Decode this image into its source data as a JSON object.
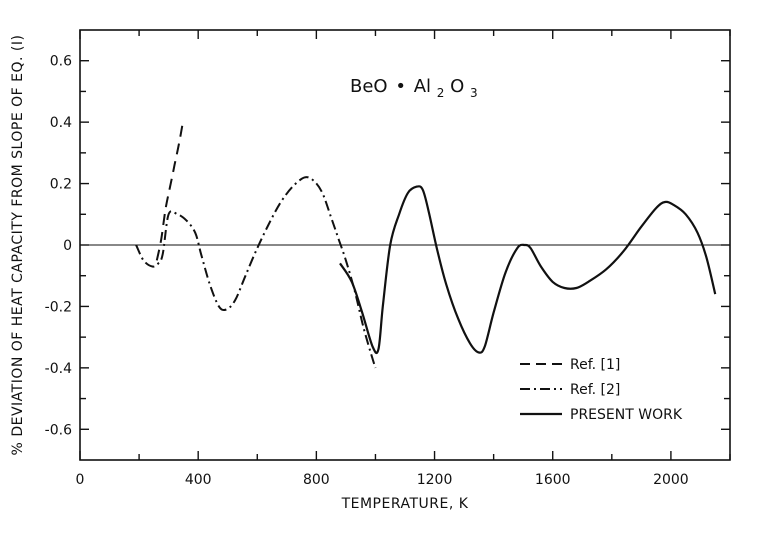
{
  "chart_data": {
    "type": "line",
    "title": "BeO•Al2O3",
    "title_parts": {
      "lead": "BeO",
      "dot": "•",
      "al": "Al",
      "sub1": "2",
      "o": "O",
      "sub2": "3"
    },
    "xlabel": "TEMPERATURE, K",
    "ylabel": "% DEVIATION OF HEAT CAPACITY FROM SLOPE OF EQ. (I)",
    "xlim": [
      0,
      2200
    ],
    "ylim": [
      -0.7,
      0.7
    ],
    "xticks": [
      0,
      400,
      800,
      1200,
      1600,
      2000
    ],
    "xtick_labels": [
      "0",
      "400",
      "800",
      "1200",
      "1600",
      "2000"
    ],
    "yticks": [
      0.6,
      0.4,
      0.2,
      0,
      -0.2,
      -0.4,
      -0.6
    ],
    "ytick_labels": [
      "0.6",
      "0.4",
      "0.2",
      "0",
      "-0.2",
      "-0.4",
      "-0.6"
    ],
    "zero_line": true,
    "grid": false,
    "legend_position": "bottom-right",
    "series": [
      {
        "name": "Ref. [1]",
        "style": "dashed",
        "points": [
          [
            260,
            -0.05
          ],
          [
            275,
            0.02
          ],
          [
            290,
            0.12
          ],
          [
            305,
            0.19
          ],
          [
            320,
            0.26
          ],
          [
            335,
            0.33
          ],
          [
            350,
            0.41
          ]
        ]
      },
      {
        "name": "Ref. [2]",
        "style": "dashdot",
        "points": [
          [
            190,
            0.0
          ],
          [
            215,
            -0.05
          ],
          [
            245,
            -0.07
          ],
          [
            265,
            -0.06
          ],
          [
            280,
            -0.03
          ],
          [
            300,
            0.1
          ],
          [
            330,
            0.1
          ],
          [
            360,
            0.08
          ],
          [
            390,
            0.04
          ],
          [
            410,
            -0.03
          ],
          [
            440,
            -0.13
          ],
          [
            470,
            -0.2
          ],
          [
            495,
            -0.21
          ],
          [
            525,
            -0.18
          ],
          [
            560,
            -0.1
          ],
          [
            600,
            -0.01
          ],
          [
            640,
            0.07
          ],
          [
            680,
            0.14
          ],
          [
            720,
            0.19
          ],
          [
            760,
            0.22
          ],
          [
            790,
            0.21
          ],
          [
            820,
            0.17
          ],
          [
            850,
            0.09
          ],
          [
            875,
            0.02
          ],
          [
            900,
            -0.05
          ],
          [
            930,
            -0.15
          ],
          [
            960,
            -0.27
          ],
          [
            990,
            -0.37
          ],
          [
            1000,
            -0.4
          ]
        ]
      },
      {
        "name": "PRESENT WORK",
        "style": "solid",
        "points": [
          [
            880,
            -0.06
          ],
          [
            920,
            -0.12
          ],
          [
            955,
            -0.22
          ],
          [
            990,
            -0.33
          ],
          [
            1010,
            -0.34
          ],
          [
            1025,
            -0.2
          ],
          [
            1050,
            0.0
          ],
          [
            1080,
            0.1
          ],
          [
            1110,
            0.17
          ],
          [
            1140,
            0.19
          ],
          [
            1160,
            0.18
          ],
          [
            1180,
            0.11
          ],
          [
            1210,
            -0.02
          ],
          [
            1240,
            -0.13
          ],
          [
            1280,
            -0.24
          ],
          [
            1320,
            -0.32
          ],
          [
            1350,
            -0.35
          ],
          [
            1370,
            -0.33
          ],
          [
            1400,
            -0.22
          ],
          [
            1440,
            -0.09
          ],
          [
            1480,
            -0.01
          ],
          [
            1505,
            0.0
          ],
          [
            1525,
            -0.01
          ],
          [
            1560,
            -0.07
          ],
          [
            1600,
            -0.12
          ],
          [
            1640,
            -0.14
          ],
          [
            1680,
            -0.14
          ],
          [
            1720,
            -0.12
          ],
          [
            1780,
            -0.08
          ],
          [
            1840,
            -0.02
          ],
          [
            1900,
            0.06
          ],
          [
            1950,
            0.12
          ],
          [
            1980,
            0.14
          ],
          [
            2010,
            0.13
          ],
          [
            2050,
            0.1
          ],
          [
            2090,
            0.04
          ],
          [
            2120,
            -0.04
          ],
          [
            2150,
            -0.16
          ]
        ]
      }
    ]
  }
}
